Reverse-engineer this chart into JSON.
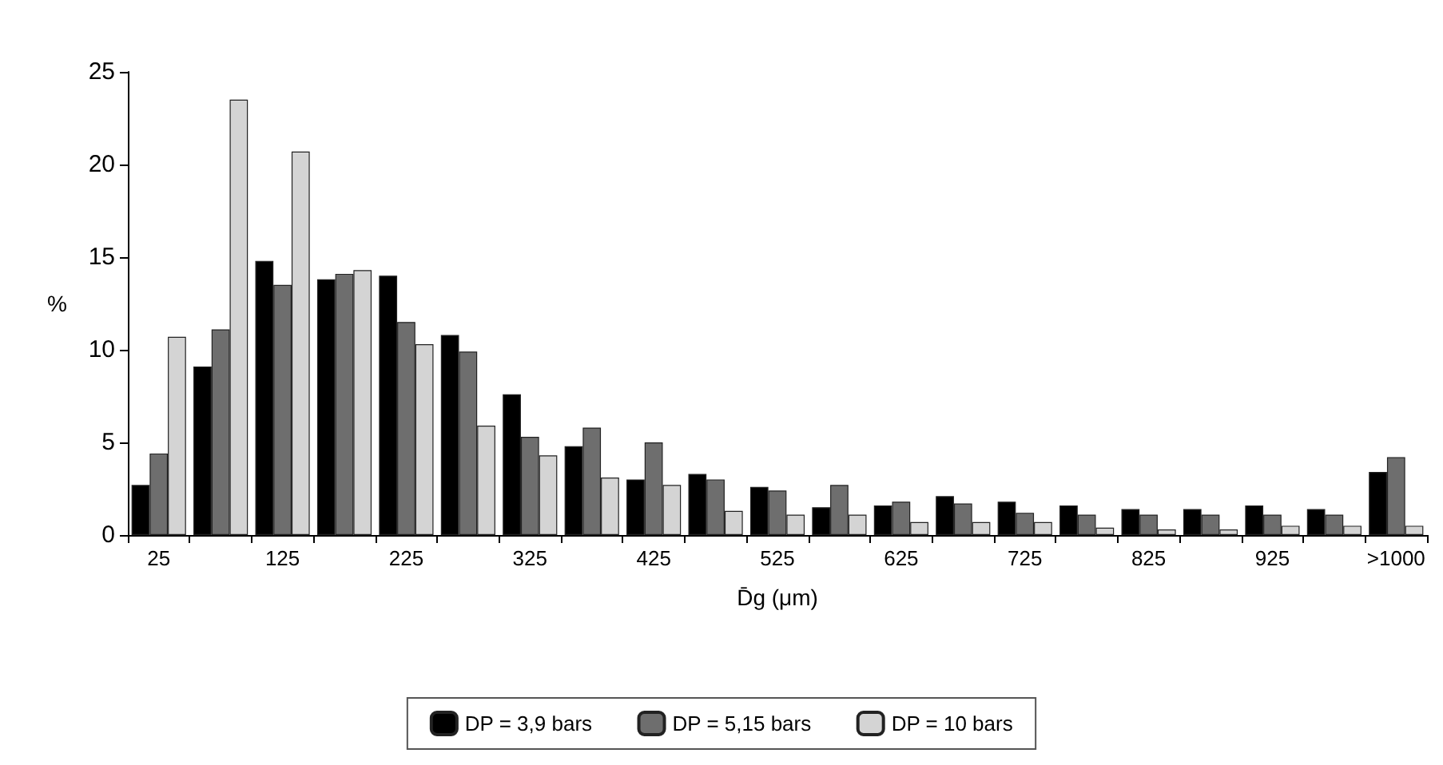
{
  "chart_data": {
    "type": "bar",
    "xlabel": "D̄g (μm)",
    "ylabel": "%",
    "categories": [
      "25",
      null,
      "125",
      null,
      "225",
      null,
      "325",
      null,
      "425",
      null,
      "525",
      null,
      "625",
      null,
      "725",
      null,
      "825",
      null,
      "925",
      null,
      ">1000"
    ],
    "series": [
      {
        "name": "DP = 3,9 bars",
        "color": "#000000",
        "values": [
          2.7,
          9.1,
          14.8,
          13.8,
          14.0,
          10.8,
          7.6,
          4.8,
          3.0,
          3.3,
          2.6,
          1.5,
          1.6,
          2.1,
          1.8,
          1.6,
          1.4,
          1.4,
          1.6,
          1.4,
          3.4
        ]
      },
      {
        "name": "DP = 5,15 bars",
        "color": "#6e6e6e",
        "values": [
          4.4,
          11.1,
          13.5,
          14.1,
          11.5,
          9.9,
          5.3,
          5.8,
          5.0,
          3.0,
          2.4,
          2.7,
          1.8,
          1.7,
          1.2,
          1.1,
          1.1,
          1.1,
          1.1,
          1.1,
          4.2
        ]
      },
      {
        "name": "DP = 10 bars",
        "color": "#d4d4d4",
        "values": [
          10.7,
          23.5,
          20.7,
          14.3,
          10.3,
          5.9,
          4.3,
          3.1,
          2.7,
          1.3,
          1.1,
          1.1,
          0.7,
          0.7,
          0.7,
          0.4,
          0.3,
          0.3,
          0.5,
          0.5,
          0.5
        ]
      }
    ],
    "ylim": [
      0,
      25
    ],
    "yticks": [
      0,
      5,
      10,
      15,
      20,
      25
    ],
    "grid": false,
    "legend": "bottom"
  }
}
